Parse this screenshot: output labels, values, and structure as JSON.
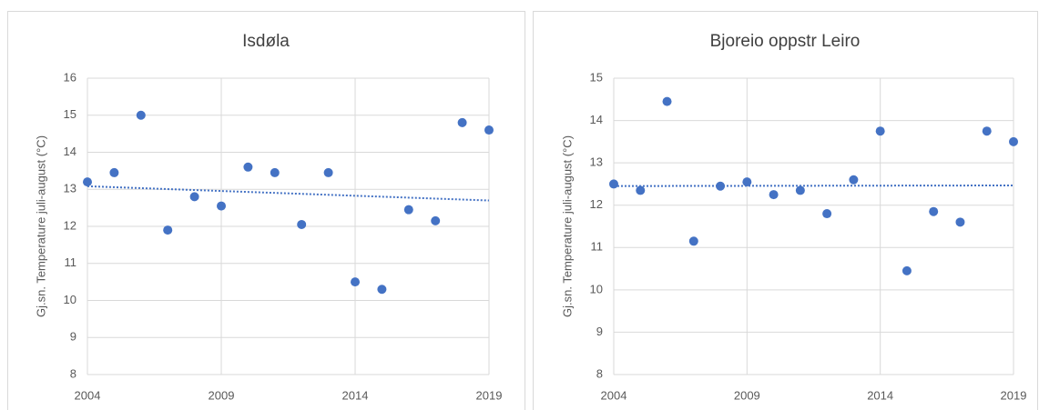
{
  "chart_data": [
    {
      "type": "scatter",
      "title": "Isdøla",
      "y_label": "Gj.sn. Temperature juli-august (°C)",
      "x": [
        2004,
        2005,
        2006,
        2007,
        2008,
        2009,
        2010,
        2011,
        2012,
        2013,
        2014,
        2015,
        2016,
        2017,
        2018,
        2019
      ],
      "values": [
        13.2,
        13.45,
        15.0,
        11.9,
        12.8,
        12.55,
        13.6,
        13.45,
        12.05,
        13.45,
        10.5,
        10.3,
        12.45,
        12.15,
        14.8,
        14.6
      ],
      "xlim": [
        2004,
        2019
      ],
      "xticks": [
        2004,
        2009,
        2014,
        2019
      ],
      "ylim": [
        8,
        16
      ],
      "yticks": [
        8,
        9,
        10,
        11,
        12,
        13,
        14,
        15,
        16
      ],
      "grid": true,
      "trendline": true,
      "color": "#4472c4"
    },
    {
      "type": "scatter",
      "title": "Bjoreio oppstr Leiro",
      "y_label": "Gj.sn. Temperature juli-august (°C)",
      "x": [
        2004,
        2005,
        2006,
        2007,
        2008,
        2009,
        2010,
        2011,
        2012,
        2013,
        2014,
        2015,
        2016,
        2017,
        2018,
        2019
      ],
      "values": [
        12.5,
        12.35,
        14.45,
        11.15,
        12.45,
        12.55,
        12.25,
        12.35,
        11.8,
        12.6,
        13.75,
        10.45,
        11.85,
        11.6,
        13.75,
        13.5
      ],
      "xlim": [
        2004,
        2019
      ],
      "xticks": [
        2004,
        2009,
        2014,
        2019
      ],
      "ylim": [
        8,
        15
      ],
      "yticks": [
        8,
        9,
        10,
        11,
        12,
        13,
        14,
        15
      ],
      "grid": true,
      "trendline": true,
      "color": "#4472c4"
    }
  ]
}
